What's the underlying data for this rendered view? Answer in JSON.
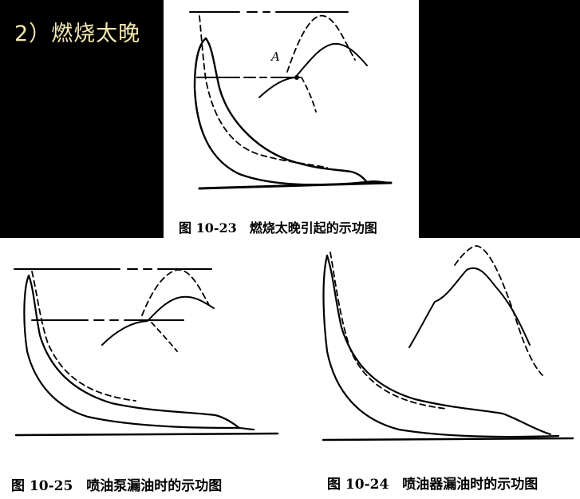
{
  "heading": {
    "text": "2）燃烧太晚"
  },
  "figures": {
    "top": {
      "caption": "图 10-23　燃烧太晚引起的示功图",
      "point_label": "A"
    },
    "bottom_left": {
      "caption": "图 10-25　喷油泵漏油时的示功图"
    },
    "bottom_right": {
      "caption": "图 10-24　喷油器漏油时的示功图"
    }
  }
}
